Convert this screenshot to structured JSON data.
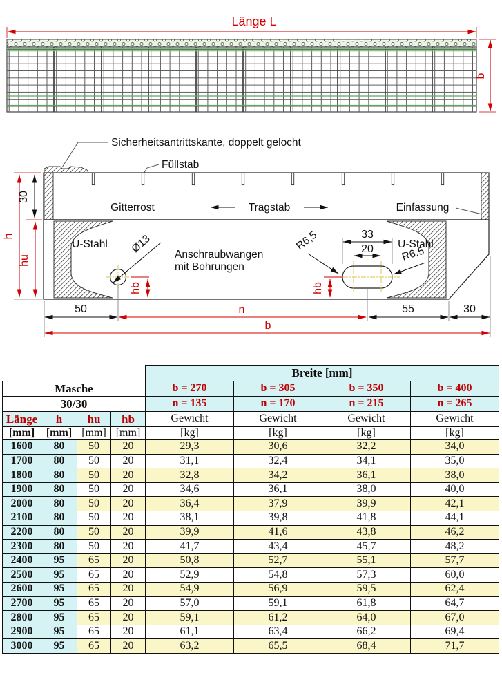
{
  "top_view": {
    "length_label": "Länge  L",
    "width_label": "b"
  },
  "section": {
    "safety_edge_label": "Sicherheitsantrittskante, doppelt gelocht",
    "fill_bar_label": "Füllstab",
    "grating_label": "Gitterrost",
    "bearing_bar_label": "Tragstab",
    "frame_label": "Einfassung",
    "u_steel_left_label": "U-Stahl",
    "u_steel_right_label": "U-Stahl",
    "cheek_line1": "Anschraubwangen",
    "cheek_line2": "mit Bohrungen",
    "hole_label": "Ø13",
    "radius_left_label": "R6,5",
    "radius_right_label": "R6,5",
    "dims": {
      "edge_height": "30",
      "h": "h",
      "hu": "hu",
      "hb_left": "hb",
      "hb_right": "hb",
      "d50": "50",
      "d33": "33",
      "d20": "20",
      "d55": "55",
      "d30_right": "30",
      "n": "n",
      "b": "b"
    }
  },
  "table": {
    "breite_header": "Breite [mm]",
    "masche_label": "Masche",
    "masche_value": "30/30",
    "b_values": [
      "b = 270",
      "b = 305",
      "b = 350",
      "b = 400"
    ],
    "n_values": [
      "n = 135",
      "n = 170",
      "n = 215",
      "n = 265"
    ],
    "col_headers": {
      "laenge": "Länge",
      "h": "h",
      "hu": "hu",
      "hb": "hb",
      "gewicht": "Gewicht"
    },
    "units": {
      "mm": "[mm]",
      "kg": "[kg]"
    },
    "rows": [
      {
        "laenge": "1600",
        "h": "80",
        "hu": "50",
        "hb": "20",
        "w": [
          "29,3",
          "30,6",
          "32,2",
          "34,0"
        ]
      },
      {
        "laenge": "1700",
        "h": "80",
        "hu": "50",
        "hb": "20",
        "w": [
          "31,1",
          "32,4",
          "34,1",
          "35,0"
        ]
      },
      {
        "laenge": "1800",
        "h": "80",
        "hu": "50",
        "hb": "20",
        "w": [
          "32,8",
          "34,2",
          "36,1",
          "38,0"
        ]
      },
      {
        "laenge": "1900",
        "h": "80",
        "hu": "50",
        "hb": "20",
        "w": [
          "34,6",
          "36,1",
          "38,0",
          "40,0"
        ]
      },
      {
        "laenge": "2000",
        "h": "80",
        "hu": "50",
        "hb": "20",
        "w": [
          "36,4",
          "37,9",
          "39,9",
          "42,1"
        ]
      },
      {
        "laenge": "2100",
        "h": "80",
        "hu": "50",
        "hb": "20",
        "w": [
          "38,1",
          "39,8",
          "41,8",
          "44,1"
        ]
      },
      {
        "laenge": "2200",
        "h": "80",
        "hu": "50",
        "hb": "20",
        "w": [
          "39,9",
          "41,6",
          "43,8",
          "46,2"
        ]
      },
      {
        "laenge": "2300",
        "h": "80",
        "hu": "50",
        "hb": "20",
        "w": [
          "41,7",
          "43,4",
          "45,7",
          "48,2"
        ]
      },
      {
        "laenge": "2400",
        "h": "95",
        "hu": "65",
        "hb": "20",
        "w": [
          "50,8",
          "52,7",
          "55,1",
          "57,7"
        ]
      },
      {
        "laenge": "2500",
        "h": "95",
        "hu": "65",
        "hb": "20",
        "w": [
          "52,9",
          "54,8",
          "57,3",
          "60,0"
        ]
      },
      {
        "laenge": "2600",
        "h": "95",
        "hu": "65",
        "hb": "20",
        "w": [
          "54,9",
          "56,9",
          "59,5",
          "62,4"
        ]
      },
      {
        "laenge": "2700",
        "h": "95",
        "hu": "65",
        "hb": "20",
        "w": [
          "57,0",
          "59,1",
          "61,8",
          "64,7"
        ]
      },
      {
        "laenge": "2800",
        "h": "95",
        "hu": "65",
        "hb": "20",
        "w": [
          "59,1",
          "61,2",
          "64,0",
          "67,0"
        ]
      },
      {
        "laenge": "2900",
        "h": "95",
        "hu": "65",
        "hb": "20",
        "w": [
          "61,1",
          "63,4",
          "66,2",
          "69,4"
        ]
      },
      {
        "laenge": "3000",
        "h": "95",
        "hu": "65",
        "hb": "20",
        "w": [
          "63,2",
          "65,5",
          "68,4",
          "71,7"
        ]
      }
    ]
  },
  "colors": {
    "accent_red": "#d10000",
    "table_cyan": "#d5f3f5",
    "table_yellow": "#faf6c8",
    "grating_green": "#5fa85f"
  }
}
